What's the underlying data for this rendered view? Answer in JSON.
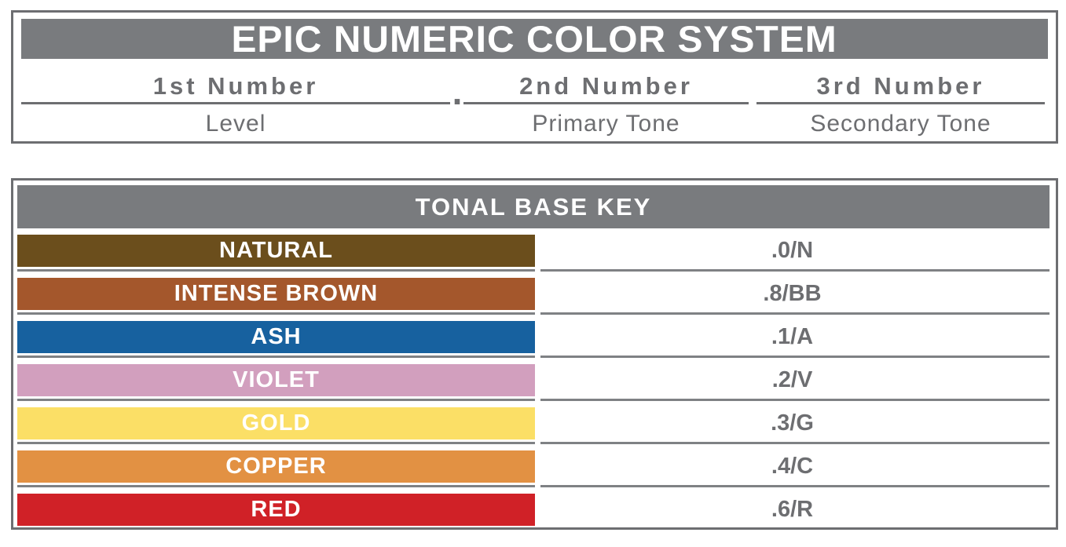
{
  "system_header": {
    "title": "EPIC NUMERIC COLOR SYSTEM",
    "separator_dot": ".",
    "columns": [
      {
        "number": "1st Number",
        "meaning": "Level"
      },
      {
        "number": "2nd Number",
        "meaning": "Primary Tone"
      },
      {
        "number": "3rd Number",
        "meaning": "Secondary Tone"
      }
    ]
  },
  "tonal_base_key": {
    "title": "TONAL BASE KEY",
    "rows": [
      {
        "label": "NATURAL",
        "code": ".0/N",
        "color": "#6b4e1c"
      },
      {
        "label": "INTENSE BROWN",
        "code": ".8/BB",
        "color": "#a4572c"
      },
      {
        "label": "ASH",
        "code": ".1/A",
        "color": "#17619f"
      },
      {
        "label": "VIOLET",
        "code": ".2/V",
        "color": "#d29fbe"
      },
      {
        "label": "GOLD",
        "code": ".3/G",
        "color": "#fbdf66"
      },
      {
        "label": "COPPER",
        "code": ".4/C",
        "color": "#e29143"
      },
      {
        "label": "RED",
        "code": ".6/R",
        "color": "#d02127"
      }
    ]
  },
  "colors": {
    "header_bar": "#797b7e",
    "panel_border": "#6d6e71",
    "divider": "#7f8184",
    "text_gray": "#6d6e71",
    "label_text": "#ffffff"
  }
}
